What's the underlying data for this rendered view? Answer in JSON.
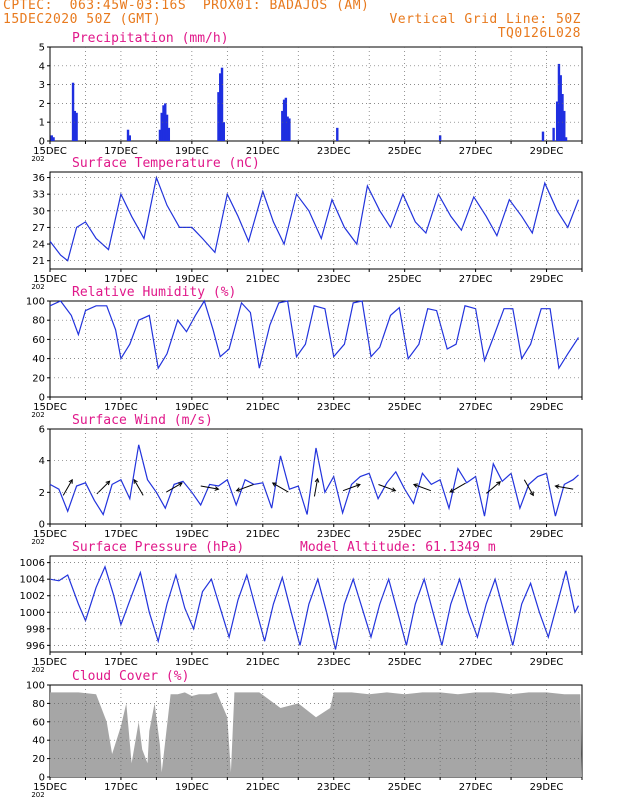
{
  "header": {
    "line1_left": "CPTEC:  063:45W-03:16S  PROX01: BADAJOS (AM)",
    "line2_left": "15DEC2020 50Z (GMT)",
    "line2_right": "Vertical Grid Line: 50Z",
    "line3_right": "TQ0126L028"
  },
  "colors": {
    "line": "#2233dd",
    "bar": "#1f2fe0",
    "cloud": "#a6a6a6",
    "title": "#e0188a",
    "header": "#e87a1e"
  },
  "x_ticks": [
    "15DEC",
    "17DEC",
    "19DEC",
    "21DEC",
    "23DEC",
    "25DEC",
    "27DEC",
    "29DEC"
  ],
  "x_sub": "202",
  "chart_data": [
    {
      "id": "precip",
      "type": "bar",
      "title": "Precipitation (mm/h)",
      "ylim": [
        0,
        5
      ],
      "yticks": [
        0,
        1,
        2,
        3,
        4,
        5
      ],
      "x_days": [
        0.05,
        0.1,
        0.65,
        0.7,
        0.75,
        2.2,
        2.25,
        3.1,
        3.15,
        3.2,
        3.25,
        3.3,
        3.35,
        4.75,
        4.8,
        4.85,
        4.9,
        6.55,
        6.6,
        6.65,
        6.7,
        6.75,
        8.1,
        11.0,
        13.9,
        14.2,
        14.3,
        14.35,
        14.4,
        14.45,
        14.5,
        14.55
      ],
      "values": [
        0.3,
        0.2,
        3.1,
        1.6,
        1.5,
        0.6,
        0.3,
        0.6,
        1.5,
        1.9,
        2.0,
        1.4,
        0.7,
        2.6,
        3.6,
        3.9,
        1.0,
        1.6,
        2.2,
        2.3,
        1.3,
        1.2,
        0.7,
        0.3,
        0.5,
        0.7,
        2.1,
        4.1,
        3.5,
        2.5,
        1.6,
        0.2
      ]
    },
    {
      "id": "temp",
      "type": "line",
      "title": "Surface Temperature (nC)",
      "ylim": [
        19.5,
        37
      ],
      "yticks": [
        21,
        24,
        27,
        30,
        33,
        36
      ],
      "x_days": [
        0,
        0.3,
        0.5,
        0.75,
        1.0,
        1.3,
        1.65,
        2.0,
        2.3,
        2.65,
        3.0,
        3.3,
        3.65,
        4.0,
        4.3,
        4.65,
        5.0,
        5.3,
        5.6,
        6.0,
        6.3,
        6.6,
        6.95,
        7.3,
        7.65,
        7.95,
        8.3,
        8.65,
        8.95,
        9.3,
        9.6,
        9.95,
        10.3,
        10.6,
        10.95,
        11.3,
        11.6,
        11.95,
        12.3,
        12.6,
        12.95,
        13.3,
        13.6,
        13.95,
        14.3,
        14.6,
        14.9
      ],
      "values": [
        24.5,
        22.0,
        21.0,
        27.0,
        28.0,
        25.0,
        23.0,
        33.0,
        29.0,
        25.0,
        36.0,
        31.0,
        27.0,
        27.0,
        25.0,
        22.5,
        33.0,
        29.0,
        24.5,
        33.5,
        28.0,
        24.0,
        33.0,
        30.0,
        25.0,
        32.0,
        27.0,
        24.0,
        34.5,
        30.0,
        27.0,
        33.0,
        28.0,
        26.0,
        33.0,
        29.0,
        26.5,
        32.5,
        29.0,
        25.5,
        32.0,
        29.0,
        26.0,
        35.0,
        30.0,
        27.0,
        32.0
      ]
    },
    {
      "id": "rh",
      "type": "line",
      "title": "Relative Humidity (%)",
      "ylim": [
        0,
        100
      ],
      "yticks": [
        0,
        20,
        40,
        60,
        80,
        100
      ],
      "x_days": [
        0,
        0.3,
        0.6,
        0.8,
        1.0,
        1.3,
        1.6,
        1.85,
        2.0,
        2.25,
        2.5,
        2.8,
        3.05,
        3.3,
        3.6,
        3.85,
        4.1,
        4.35,
        4.6,
        4.8,
        5.05,
        5.4,
        5.65,
        5.9,
        6.2,
        6.45,
        6.7,
        6.95,
        7.2,
        7.45,
        7.75,
        8.0,
        8.3,
        8.55,
        8.8,
        9.05,
        9.3,
        9.6,
        9.85,
        10.1,
        10.4,
        10.65,
        10.9,
        11.2,
        11.45,
        11.7,
        12.0,
        12.25,
        12.5,
        12.8,
        13.05,
        13.3,
        13.55,
        13.85,
        14.1,
        14.35,
        14.6,
        14.9
      ],
      "values": [
        95,
        100,
        85,
        65,
        90,
        95,
        95,
        70,
        40,
        55,
        80,
        85,
        30,
        45,
        80,
        68,
        85,
        100,
        70,
        42,
        50,
        98,
        88,
        30,
        75,
        98,
        100,
        42,
        55,
        95,
        92,
        42,
        55,
        98,
        100,
        42,
        52,
        85,
        93,
        40,
        55,
        92,
        90,
        50,
        55,
        95,
        92,
        38,
        62,
        92,
        92,
        40,
        55,
        92,
        92,
        30,
        45,
        62
      ]
    },
    {
      "id": "wind",
      "type": "line",
      "title": "Surface Wind (m/s)",
      "ylim": [
        0,
        6
      ],
      "yticks": [
        0,
        2,
        4,
        6
      ],
      "x_days": [
        0,
        0.25,
        0.5,
        0.75,
        1.0,
        1.25,
        1.5,
        1.75,
        2.0,
        2.25,
        2.5,
        2.75,
        3.0,
        3.25,
        3.5,
        3.75,
        4.0,
        4.25,
        4.5,
        4.75,
        5.0,
        5.25,
        5.5,
        5.75,
        6.0,
        6.25,
        6.5,
        6.75,
        7.0,
        7.25,
        7.5,
        7.75,
        8.0,
        8.25,
        8.5,
        8.75,
        9.0,
        9.25,
        9.5,
        9.75,
        10.0,
        10.25,
        10.5,
        10.75,
        11.0,
        11.25,
        11.5,
        11.75,
        12.0,
        12.25,
        12.5,
        12.75,
        13.0,
        13.25,
        13.5,
        13.75,
        14.0,
        14.25,
        14.5,
        14.75,
        14.9
      ],
      "values": [
        2.5,
        2.2,
        0.8,
        2.4,
        2.6,
        1.5,
        0.6,
        2.5,
        2.8,
        1.6,
        5.0,
        2.8,
        2.0,
        1.0,
        2.5,
        2.7,
        2.0,
        1.2,
        2.5,
        2.4,
        2.8,
        1.2,
        2.8,
        2.5,
        2.6,
        1.0,
        4.3,
        2.2,
        2.4,
        0.6,
        4.8,
        2.0,
        3.0,
        0.7,
        2.5,
        3.0,
        3.2,
        1.6,
        2.6,
        3.3,
        2.2,
        1.3,
        3.2,
        2.5,
        2.8,
        1.0,
        3.5,
        2.6,
        3.0,
        0.5,
        3.8,
        2.7,
        3.2,
        1.0,
        2.5,
        3.0,
        3.2,
        0.5,
        2.5,
        2.8,
        3.1
      ],
      "arrow_days": [
        0.5,
        1.5,
        2.5,
        3.5,
        4.5,
        5.5,
        6.5,
        7.5,
        8.5,
        9.5,
        10.5,
        11.5,
        12.5,
        13.5,
        14.5
      ],
      "arrow_deg": [
        60,
        45,
        120,
        30,
        -10,
        200,
        150,
        80,
        20,
        -20,
        160,
        210,
        40,
        -60,
        170
      ]
    },
    {
      "id": "pres",
      "type": "line",
      "title": "Surface Pressure (hPa)",
      "annotation": "Model Altitude: 61.1349 m",
      "ylim": [
        995.2,
        1006.8
      ],
      "yticks": [
        996,
        998,
        1000,
        1002,
        1004,
        1006
      ],
      "x_days": [
        0,
        0.25,
        0.5,
        0.8,
        1.0,
        1.3,
        1.55,
        1.8,
        2.0,
        2.3,
        2.55,
        2.8,
        3.05,
        3.3,
        3.55,
        3.8,
        4.05,
        4.3,
        4.55,
        4.8,
        5.05,
        5.3,
        5.55,
        5.8,
        6.05,
        6.3,
        6.55,
        6.8,
        7.05,
        7.3,
        7.55,
        7.8,
        8.05,
        8.3,
        8.55,
        8.8,
        9.05,
        9.3,
        9.55,
        9.8,
        10.05,
        10.3,
        10.55,
        10.8,
        11.05,
        11.3,
        11.55,
        11.8,
        12.05,
        12.3,
        12.55,
        12.8,
        13.05,
        13.3,
        13.55,
        13.8,
        14.05,
        14.3,
        14.55,
        14.8,
        14.9
      ],
      "values": [
        1004,
        1003.8,
        1004.5,
        1001,
        999,
        1003,
        1005.5,
        1002,
        998.5,
        1002,
        1004.8,
        1000,
        996.5,
        1001,
        1004.5,
        1000.5,
        998,
        1002.5,
        1004,
        1000.5,
        997,
        1001.5,
        1004.5,
        1000.5,
        996.5,
        1001,
        1004.2,
        1000,
        996,
        1001,
        1004,
        1000,
        995.5,
        1001,
        1004,
        1000.5,
        997,
        1001,
        1004,
        1000,
        996,
        1001,
        1004,
        1000,
        996,
        1001,
        1004,
        1000,
        997,
        1001,
        1004,
        1000,
        996,
        1001,
        1003.5,
        1000,
        997,
        1001,
        1005,
        1000,
        1000.8
      ]
    },
    {
      "id": "cloud",
      "type": "area",
      "title": "Cloud Cover (%)",
      "ylim": [
        0,
        100
      ],
      "yticks": [
        0,
        20,
        40,
        60,
        80,
        100
      ],
      "x_days": [
        0,
        0.8,
        1.3,
        1.6,
        1.75,
        2.0,
        2.15,
        2.3,
        2.5,
        2.6,
        2.75,
        2.8,
        2.95,
        3.1,
        3.15,
        3.4,
        3.6,
        3.8,
        4.0,
        4.2,
        4.5,
        4.7,
        5.0,
        5.1,
        5.2,
        5.5,
        5.9,
        6.5,
        7.0,
        7.5,
        7.9,
        8.0,
        8.5,
        9.0,
        9.5,
        10.0,
        10.5,
        11.0,
        11.5,
        12.0,
        12.5,
        13.0,
        13.5,
        14.0,
        14.5,
        14.95
      ],
      "values": [
        92,
        92,
        90,
        60,
        25,
        55,
        80,
        15,
        60,
        30,
        15,
        50,
        80,
        35,
        5,
        90,
        90,
        92,
        88,
        90,
        90,
        92,
        65,
        5,
        92,
        92,
        92,
        75,
        80,
        65,
        75,
        92,
        92,
        90,
        92,
        90,
        92,
        92,
        90,
        92,
        92,
        90,
        92,
        92,
        90,
        90
      ]
    }
  ]
}
